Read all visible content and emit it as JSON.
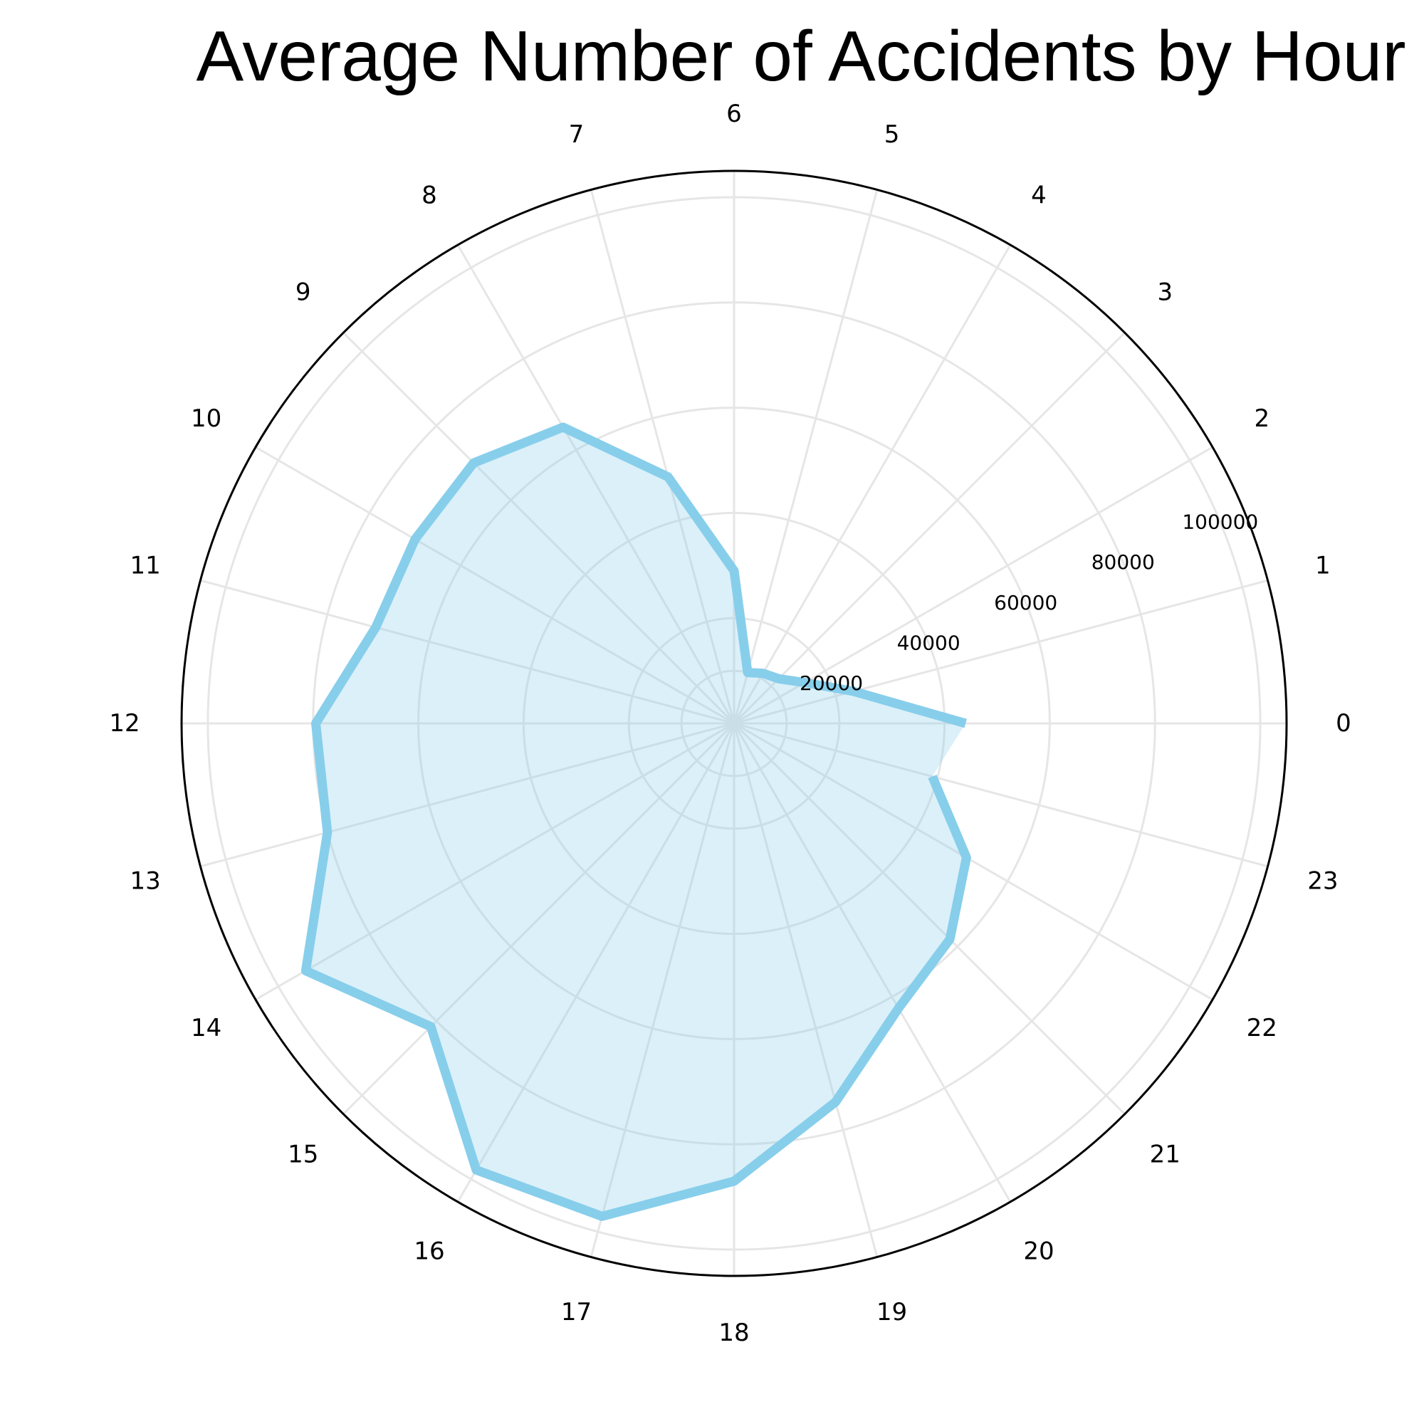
{
  "chart_data": {
    "type": "radar",
    "title": "Average Number of Accidents by Hour",
    "categories": [
      "0",
      "1",
      "2",
      "3",
      "4",
      "5",
      "6",
      "7",
      "8",
      "9",
      "10",
      "11",
      "12",
      "13",
      "14",
      "15",
      "16",
      "17",
      "18",
      "19",
      "20",
      "21",
      "22",
      "23"
    ],
    "series": [
      {
        "values": [
          44000,
          23500,
          15500,
          12000,
          11000,
          10000,
          29000,
          48500,
          65000,
          70000,
          70000,
          70500,
          79500,
          80000,
          94000,
          81500,
          98000,
          97000,
          87000,
          74500,
          62500,
          58000,
          51000,
          39000
        ]
      }
    ],
    "radial_ticks": [
      "20000",
      "40000",
      "60000",
      "80000",
      "100000"
    ],
    "radial_tick_values": [
      20000,
      40000,
      60000,
      80000,
      100000
    ],
    "rmax": 105000,
    "grid": true,
    "colors": {
      "line": "#87ceeb",
      "fill": "#87ceeb",
      "grid": "#e6e6e6",
      "frame": "#000000"
    }
  }
}
